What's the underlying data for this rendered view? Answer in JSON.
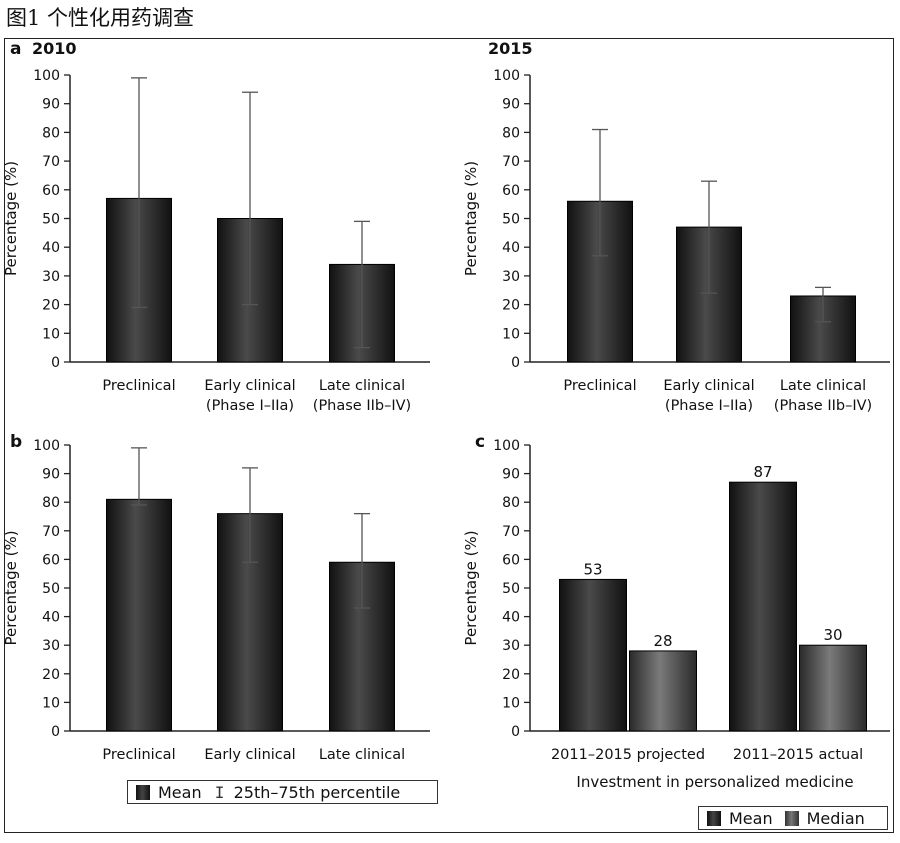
{
  "figure_title": "图1 个性化用药调查",
  "colors": {
    "bar": "#111111",
    "bar_highlight": "#4a4a4a",
    "median_bar": "#555555",
    "axis": "#222222"
  },
  "chart_data": [
    {
      "id": "a-2010",
      "panel_letter": "a",
      "title": "2010",
      "type": "bar",
      "ylabel": "Percentage (%)",
      "ylim": [
        0,
        100
      ],
      "yticks": [
        0,
        10,
        20,
        30,
        40,
        50,
        60,
        70,
        80,
        90,
        100
      ],
      "categories": [
        [
          "Preclinical"
        ],
        [
          "Early clinical",
          "(Phase I–IIa)"
        ],
        [
          "Late clinical",
          "(Phase IIb–IV)"
        ]
      ],
      "series": [
        {
          "values": [
            57,
            50,
            34
          ]
        }
      ],
      "error_bars": [
        [
          19,
          99
        ],
        [
          20,
          94
        ],
        [
          5,
          49
        ]
      ]
    },
    {
      "id": "a-2015",
      "panel_letter": "",
      "title": "2015",
      "type": "bar",
      "ylabel": "Percentage (%)",
      "ylim": [
        0,
        100
      ],
      "yticks": [
        0,
        10,
        20,
        30,
        40,
        50,
        60,
        70,
        80,
        90,
        100
      ],
      "categories": [
        [
          "Preclinical"
        ],
        [
          "Early clinical",
          "(Phase I–IIa)"
        ],
        [
          "Late clinical",
          "(Phase IIb–IV)"
        ]
      ],
      "series": [
        {
          "values": [
            56,
            47,
            23
          ]
        }
      ],
      "error_bars": [
        [
          37,
          81
        ],
        [
          24,
          63
        ],
        [
          14,
          26
        ]
      ]
    },
    {
      "id": "b",
      "panel_letter": "b",
      "title": "",
      "type": "bar",
      "ylabel": "Percentage (%)",
      "ylim": [
        0,
        100
      ],
      "yticks": [
        0,
        10,
        20,
        30,
        40,
        50,
        60,
        70,
        80,
        90,
        100
      ],
      "categories": [
        [
          "Preclinical"
        ],
        [
          "Early clinical"
        ],
        [
          "Late clinical"
        ]
      ],
      "series": [
        {
          "values": [
            81,
            76,
            59
          ]
        }
      ],
      "error_bars": [
        [
          79,
          99
        ],
        [
          59,
          92
        ],
        [
          43,
          76
        ]
      ]
    },
    {
      "id": "c",
      "panel_letter": "c",
      "title": "",
      "type": "bar",
      "ylabel": "Percentage (%)",
      "xlabel": "Investment in personalized medicine",
      "ylim": [
        0,
        100
      ],
      "yticks": [
        0,
        10,
        20,
        30,
        40,
        50,
        60,
        70,
        80,
        90,
        100
      ],
      "categories": [
        [
          "2011–2015 projected"
        ],
        [
          "2011–2015 actual"
        ]
      ],
      "series": [
        {
          "name": "Mean",
          "values": [
            53,
            87
          ]
        },
        {
          "name": "Median",
          "values": [
            28,
            30
          ]
        }
      ],
      "data_labels": [
        [
          "53",
          "87"
        ],
        [
          "28",
          "30"
        ]
      ]
    }
  ],
  "legend_b": {
    "mean_label": "Mean",
    "error_label": "25th–75th percentile",
    "error_glyph": "I"
  },
  "legend_c": {
    "mean_label": "Mean",
    "median_label": "Median"
  }
}
